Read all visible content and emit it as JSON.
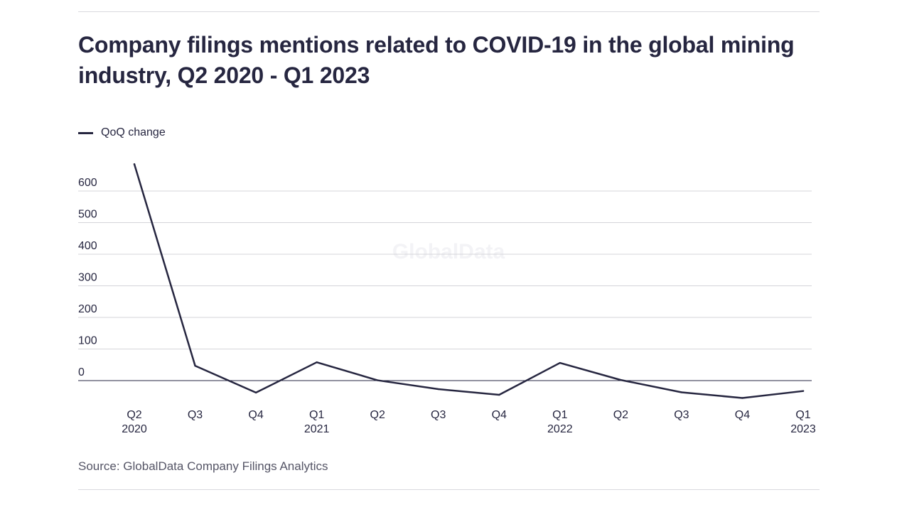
{
  "header": {
    "title": "Company filings mentions related to COVID-19 in the global mining industry, Q2 2020 - Q1 2023"
  },
  "legend": {
    "label": "QoQ change",
    "color": "#262640"
  },
  "watermark": "GlobalData",
  "footer": {
    "source": "Source: GlobalData Company Filings Analytics"
  },
  "chart_data": {
    "type": "line",
    "title": "Company filings mentions related to COVID-19 in the global mining industry, Q2 2020 - Q1 2023",
    "xlabel": "",
    "ylabel": "",
    "categories": [
      [
        "Q2",
        "2020"
      ],
      [
        "Q3",
        ""
      ],
      [
        "Q4",
        ""
      ],
      [
        "Q1",
        "2021"
      ],
      [
        "Q2",
        ""
      ],
      [
        "Q3",
        ""
      ],
      [
        "Q4",
        ""
      ],
      [
        "Q1",
        "2022"
      ],
      [
        "Q2",
        ""
      ],
      [
        "Q3",
        ""
      ],
      [
        "Q4",
        ""
      ],
      [
        "Q1",
        "2023"
      ]
    ],
    "series": [
      {
        "name": "QoQ change",
        "color": "#262640",
        "values": [
          685,
          47,
          -38,
          58,
          1,
          -27,
          -45,
          56,
          2,
          -37,
          -55,
          -33
        ]
      }
    ],
    "y_ticks": [
      0,
      100,
      200,
      300,
      400,
      500,
      600
    ],
    "ylim": [
      -60,
      700
    ],
    "grid": true,
    "legend_position": "top-left"
  }
}
